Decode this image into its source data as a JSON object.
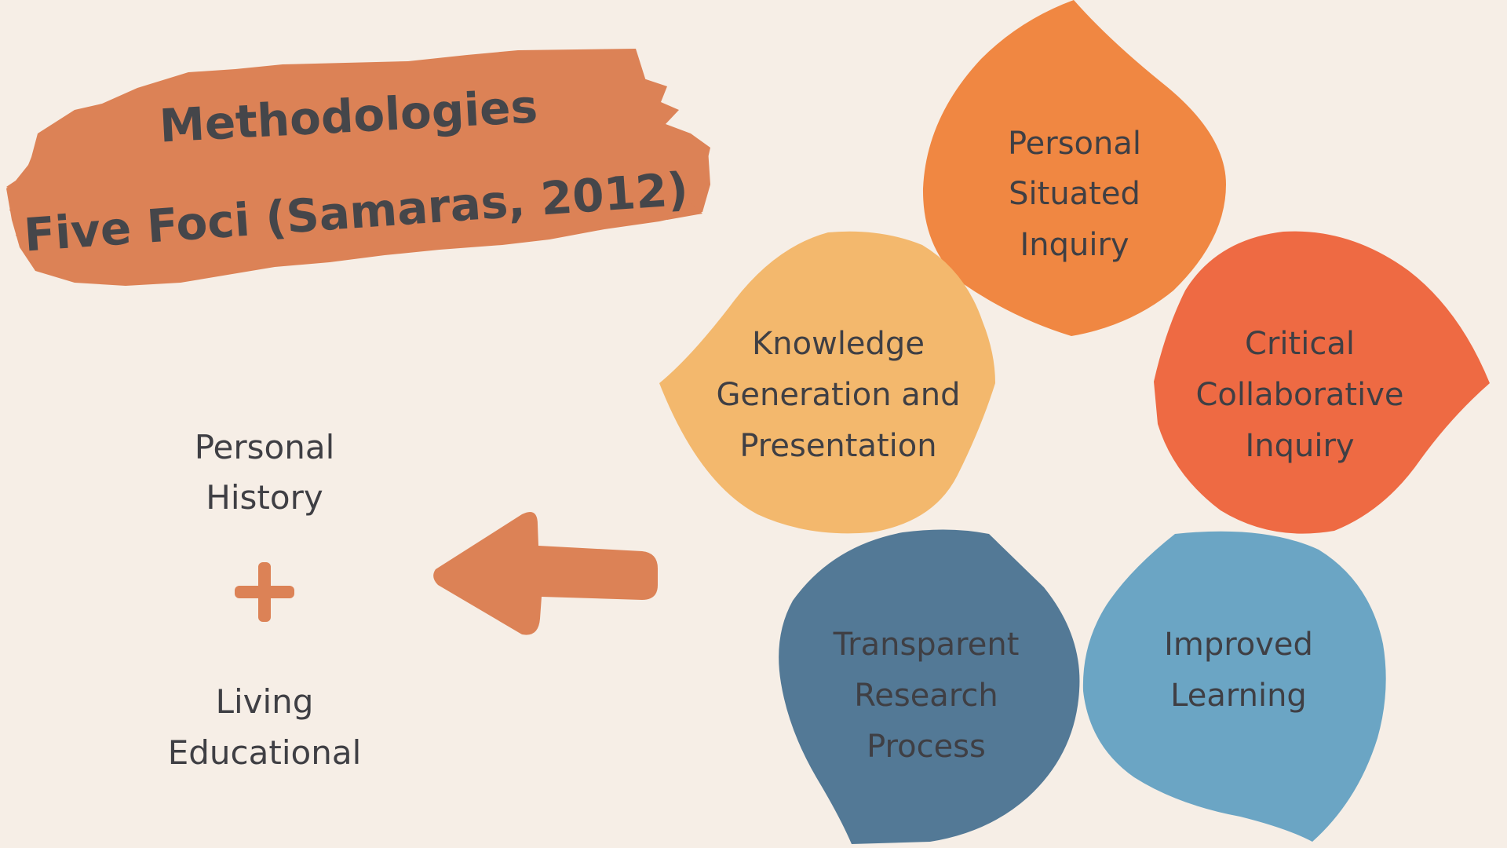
{
  "title": {
    "line1": "Methodologies",
    "line2": "Five Foci (Samaras, 2012)"
  },
  "left": {
    "top_line1": "Personal",
    "top_line2": "History",
    "plus": "+",
    "bottom_line1": "Living",
    "bottom_line2": "Educational"
  },
  "petals": {
    "top": {
      "line1": "Personal",
      "line2": "Situated",
      "line3": "Inquiry",
      "color": "#f08742"
    },
    "left": {
      "line1": "Knowledge",
      "line2": "Generation and",
      "line3": "Presentation",
      "color": "#f3b86d"
    },
    "right": {
      "line1": "Critical",
      "line2": "Collaborative",
      "line3": "Inquiry",
      "color": "#ee6a43"
    },
    "bottom_left": {
      "line1": "Transparent",
      "line2": "Research",
      "line3": "Process",
      "color": "#537996"
    },
    "bottom_right": {
      "line1": "Improved",
      "line2": "Learning",
      "color": "#6ba5c4"
    }
  },
  "colors": {
    "background": "#f6eee6",
    "accent": "#dc8256",
    "text": "#3f3f44"
  }
}
